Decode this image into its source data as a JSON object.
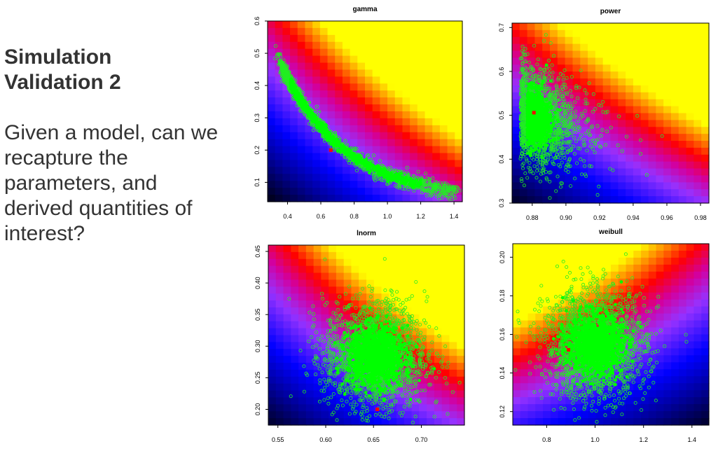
{
  "slide": {
    "title_lines": [
      "Simulation",
      "Validation 2"
    ],
    "body_lines": [
      "Given a model, can we",
      "recapture the",
      "parameters, and",
      "derived quantities of",
      "interest?"
    ]
  },
  "colors": {
    "point": "#22ee22",
    "point_fill": "#00ff00",
    "marker": "#ff0000"
  },
  "chart_data": [
    {
      "type": "scatter",
      "title": "gamma",
      "xlim": [
        0.28,
        1.45
      ],
      "ylim": [
        0.04,
        0.6
      ],
      "xticks": [
        0.4,
        0.6,
        0.8,
        1.0,
        1.2,
        1.4
      ],
      "xtick_labels": [
        "0.4",
        "0.6",
        "0.8",
        "1.0",
        "1.2",
        "1.4"
      ],
      "yticks": [
        0.1,
        0.2,
        0.3,
        0.4,
        0.5,
        0.6
      ],
      "ytick_labels": [
        "0.1",
        "0.2",
        "0.3",
        "0.4",
        "0.5",
        "0.6"
      ],
      "background": "heatmap",
      "cloud": {
        "shape": "curved",
        "n": 1500,
        "x_range": [
          0.38,
          1.42
        ],
        "y_center": 0.25
      },
      "marker": {
        "x": 0.66,
        "y": 0.2
      }
    },
    {
      "type": "scatter",
      "title": "power",
      "xlim": [
        0.868,
        0.985
      ],
      "ylim": [
        0.3,
        0.71
      ],
      "xticks": [
        0.88,
        0.9,
        0.92,
        0.94,
        0.96,
        0.98
      ],
      "xtick_labels": [
        "0.88",
        "0.90",
        "0.92",
        "0.94",
        "0.96",
        "0.98"
      ],
      "yticks": [
        0.3,
        0.4,
        0.5,
        0.6,
        0.7
      ],
      "ytick_labels": [
        "0.3",
        "0.4",
        "0.5",
        "0.6",
        "0.7"
      ],
      "background": "heatmap",
      "cloud": {
        "shape": "skewed",
        "n": 1600,
        "x_center": 0.885,
        "y_center": 0.49
      },
      "marker": {
        "x": 0.881,
        "y": 0.506
      }
    },
    {
      "type": "scatter",
      "title": "lnorm",
      "xlim": [
        0.54,
        0.745
      ],
      "ylim": [
        0.175,
        0.46
      ],
      "xticks": [
        0.55,
        0.6,
        0.65,
        0.7
      ],
      "xtick_labels": [
        "0.55",
        "0.60",
        "0.65",
        "0.70"
      ],
      "yticks": [
        0.2,
        0.25,
        0.3,
        0.35,
        0.4,
        0.45
      ],
      "ytick_labels": [
        "0.20",
        "0.25",
        "0.30",
        "0.35",
        "0.40",
        "0.45"
      ],
      "background": "heatmap",
      "cloud": {
        "shape": "round",
        "n": 1800,
        "x_center": 0.652,
        "y_center": 0.285
      },
      "marker": {
        "x": 0.654,
        "y": 0.2
      }
    },
    {
      "type": "scatter",
      "title": "weibull",
      "xlim": [
        0.66,
        1.47
      ],
      "ylim": [
        0.113,
        0.207
      ],
      "xticks": [
        0.8,
        1.0,
        1.2,
        1.4
      ],
      "xtick_labels": [
        "0.8",
        "1.0",
        "1.2",
        "1.4"
      ],
      "yticks": [
        0.12,
        0.14,
        0.16,
        0.18,
        0.2
      ],
      "ytick_labels": [
        "0.12",
        "0.14",
        "0.16",
        "0.18",
        "0.20"
      ],
      "background": "heatmap",
      "cloud": {
        "shape": "round",
        "n": 1800,
        "x_center": 1.0,
        "y_center": 0.155
      },
      "marker": {
        "x": 0.89,
        "y": 0.152
      }
    }
  ]
}
